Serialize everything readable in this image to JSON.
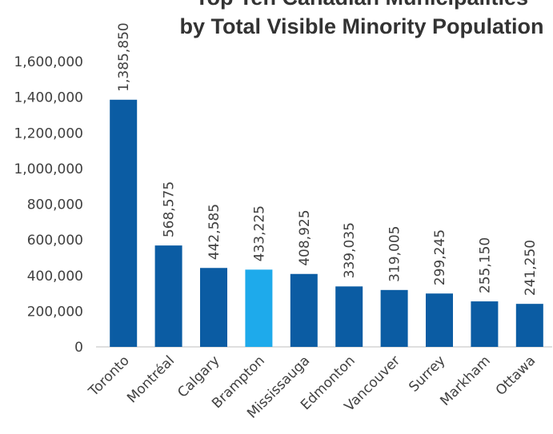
{
  "chart_data": {
    "type": "bar",
    "title": [
      "Top Ten Canadian Municipalities",
      "by Total Visible Minority Population"
    ],
    "categories": [
      "Toronto",
      "Montréal",
      "Calgary",
      "Brampton",
      "Mississauga",
      "Edmonton",
      "Vancouver",
      "Surrey",
      "Markham",
      "Ottawa"
    ],
    "values": [
      1385850,
      568575,
      442585,
      433225,
      408925,
      339035,
      319005,
      299245,
      255150,
      241250
    ],
    "value_labels": [
      "1,385,850",
      "568,575",
      "442,585",
      "433,225",
      "408,925",
      "339,035",
      "319,005",
      "299,245",
      "255,150",
      "241,250"
    ],
    "colors": [
      "#0b5ca3",
      "#0b5ca3",
      "#0b5ca3",
      "#1eaaeb",
      "#0b5ca3",
      "#0b5ca3",
      "#0b5ca3",
      "#0b5ca3",
      "#0b5ca3",
      "#0b5ca3"
    ],
    "ylim": [
      0,
      1600000
    ],
    "yticks": [
      0,
      {
        "value": 200000,
        "label": "200,000"
      },
      {
        "value": 400000,
        "label": "400,000"
      },
      {
        "value": 600000,
        "label": "600,000"
      },
      {
        "value": 800000,
        "label": "800,000"
      },
      {
        "value": 1000000,
        "label": "1,000,000"
      },
      {
        "value": 1200000,
        "label": "1,200,000"
      },
      {
        "value": 1400000,
        "label": "1,400,000"
      },
      {
        "value": 1600000,
        "label": "1,600,000"
      }
    ],
    "grid": false
  }
}
